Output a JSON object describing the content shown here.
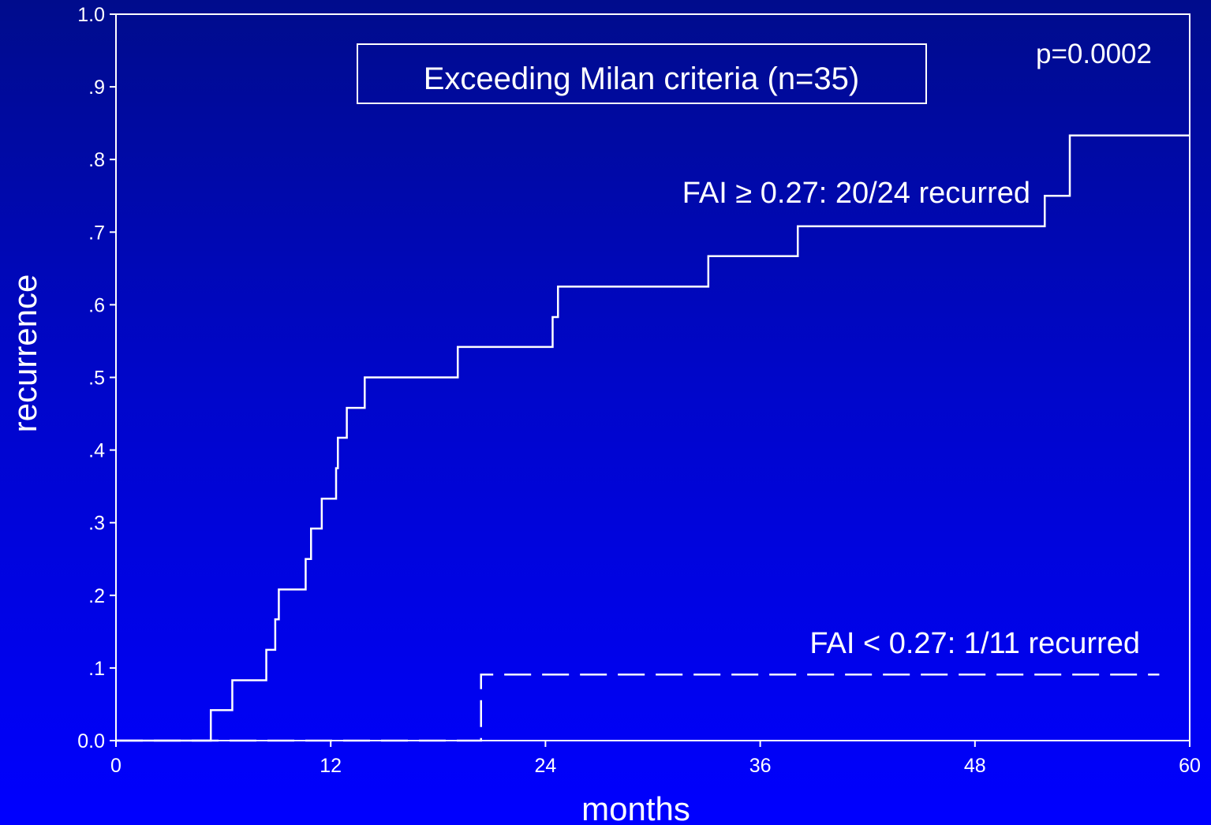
{
  "chart_data": {
    "type": "line",
    "title": "Exceeding Milan criteria (n=35)",
    "xlabel": "months",
    "ylabel": "recurrence",
    "xlim": [
      0,
      60
    ],
    "ylim": [
      0,
      1
    ],
    "x_ticks": [
      "0",
      "12",
      "24",
      "36",
      "48",
      "60"
    ],
    "x_tick_values": [
      0,
      12,
      24,
      36,
      48,
      60
    ],
    "y_ticks": [
      "0.0",
      ".1",
      ".2",
      ".3",
      ".4",
      ".5",
      ".6",
      ".7",
      ".8",
      ".9",
      "1.0"
    ],
    "y_tick_values": [
      0,
      0.1,
      0.2,
      0.3,
      0.4,
      0.5,
      0.6,
      0.7,
      0.8,
      0.9,
      1.0
    ],
    "grid": false,
    "p_value": "p=0.0002",
    "series": [
      {
        "label": "FAI ≥ 0.27: 20/24 recurred",
        "line_style": "solid",
        "color": "#ffffff",
        "steps": [
          [
            0,
            0
          ],
          [
            5.3,
            0.042
          ],
          [
            6.5,
            0.083
          ],
          [
            8.4,
            0.125
          ],
          [
            8.9,
            0.167
          ],
          [
            9.1,
            0.208
          ],
          [
            10.6,
            0.25
          ],
          [
            10.9,
            0.292
          ],
          [
            11.5,
            0.333
          ],
          [
            12.3,
            0.375
          ],
          [
            12.4,
            0.417
          ],
          [
            12.9,
            0.458
          ],
          [
            13.9,
            0.5
          ],
          [
            19.1,
            0.542
          ],
          [
            24.4,
            0.583
          ],
          [
            24.7,
            0.625
          ],
          [
            33.1,
            0.667
          ],
          [
            38.1,
            0.708
          ],
          [
            51.9,
            0.75
          ],
          [
            53.3,
            0.833
          ],
          [
            60,
            0.833
          ]
        ]
      },
      {
        "label": "FAI < 0.27: 1/11 recurred",
        "line_style": "dashed",
        "color": "#ffffff",
        "steps": [
          [
            0,
            0
          ],
          [
            20.4,
            0.091
          ],
          [
            58.3,
            0.091
          ]
        ]
      }
    ]
  }
}
